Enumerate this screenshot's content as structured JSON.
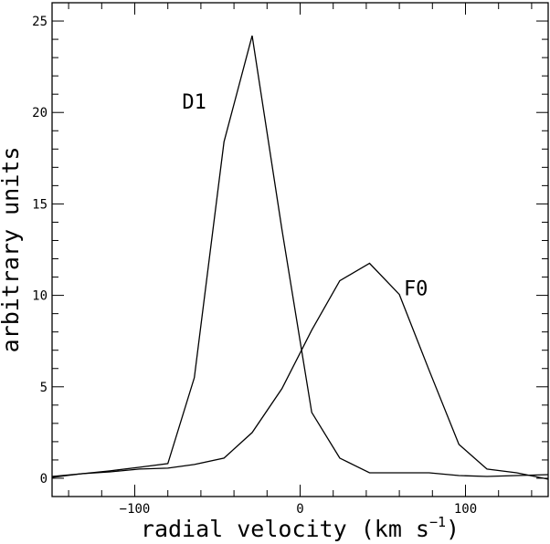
{
  "chart_data": {
    "type": "line",
    "title": "",
    "xlabel": "radial velocity (km s",
    "xlabel_sup": "−1",
    "xlabel_close": ")",
    "ylabel": "arbitrary units",
    "xlim": [
      -150,
      150
    ],
    "ylim": [
      -1,
      26
    ],
    "grid": false,
    "x_ticks": [
      -100,
      0,
      100
    ],
    "y_ticks": [
      0,
      5,
      10,
      15,
      20,
      25
    ],
    "series": [
      {
        "name": "D1",
        "points": [
          [
            -150,
            0.1
          ],
          [
            -132,
            0.25
          ],
          [
            -115,
            0.4
          ],
          [
            -97,
            0.6
          ],
          [
            -80,
            0.8
          ],
          [
            -64,
            5.5
          ],
          [
            -46,
            18.4
          ],
          [
            -29,
            24.2
          ],
          [
            -11,
            13.6
          ],
          [
            7,
            3.6
          ],
          [
            24,
            1.1
          ],
          [
            42,
            0.3
          ],
          [
            60,
            0.3
          ],
          [
            78,
            0.3
          ],
          [
            96,
            0.15
          ],
          [
            113,
            0.1
          ],
          [
            131,
            0.15
          ],
          [
            150,
            0.2
          ]
        ]
      },
      {
        "name": "F0",
        "points": [
          [
            -150,
            0.05
          ],
          [
            -132,
            0.25
          ],
          [
            -115,
            0.35
          ],
          [
            -97,
            0.5
          ],
          [
            -80,
            0.55
          ],
          [
            -64,
            0.75
          ],
          [
            -46,
            1.1
          ],
          [
            -29,
            2.5
          ],
          [
            -11,
            4.9
          ],
          [
            7,
            8.1
          ],
          [
            24,
            10.8
          ],
          [
            42,
            11.75
          ],
          [
            60,
            10.05
          ],
          [
            78,
            5.9
          ],
          [
            96,
            1.85
          ],
          [
            113,
            0.5
          ],
          [
            131,
            0.3
          ],
          [
            150,
            -0.05
          ]
        ]
      }
    ],
    "annotations": [
      {
        "text": "D1",
        "x": -64,
        "y": 20.2
      },
      {
        "text": "F0",
        "x": 70,
        "y": 10.0
      }
    ]
  }
}
